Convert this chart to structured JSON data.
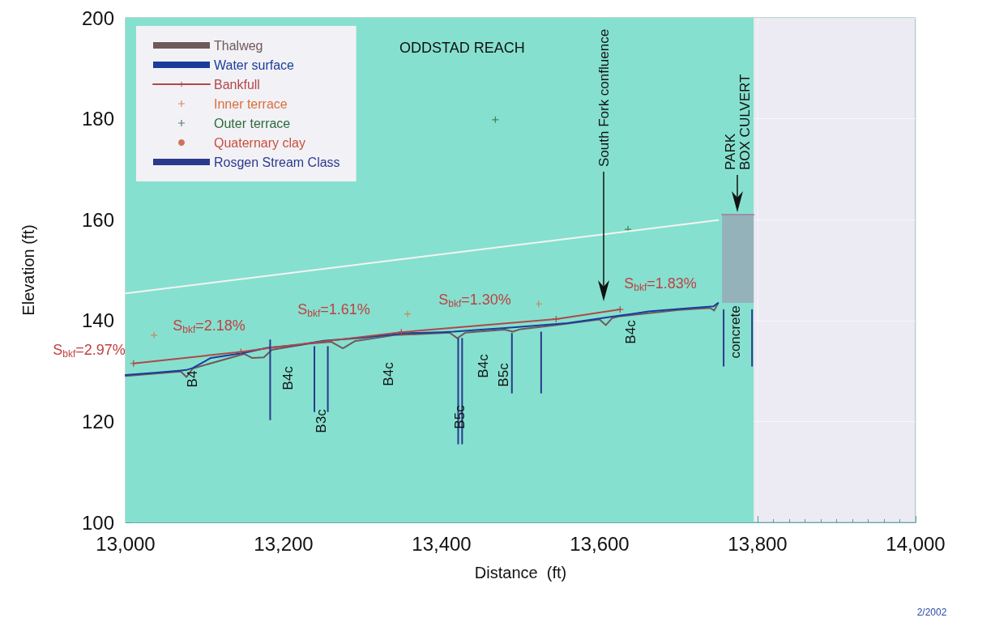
{
  "chart_data": {
    "type": "line",
    "title": "ODDSTAD REACH",
    "xlabel": "Distance  (ft)",
    "ylabel": "Elevation (ft)",
    "xlim": [
      13000,
      14000
    ],
    "xticks": [
      {
        "value": 13000,
        "label": "13,000"
      },
      {
        "value": 13200,
        "label": "13,200"
      },
      {
        "value": 13400,
        "label": "13,400"
      },
      {
        "value": 13600,
        "label": "13,600"
      },
      {
        "value": 13800,
        "label": "13,800"
      },
      {
        "value": 14000,
        "label": "14,000"
      }
    ],
    "ylim": [
      100,
      200
    ],
    "yticks": [
      100,
      120,
      140,
      160,
      180,
      200
    ],
    "grid": true,
    "legend": "top left",
    "bands": [
      {
        "axis": "x",
        "from": 13000,
        "to": 13795,
        "color": "#86e0cf"
      }
    ],
    "series": [
      {
        "name": "Thalweg",
        "color": "#6e5a5a",
        "marker": "none",
        "x": [
          13000,
          13070,
          13077,
          13085,
          13150,
          13160,
          13175,
          13185,
          13230,
          13260,
          13275,
          13290,
          13340,
          13410,
          13420,
          13430,
          13480,
          13490,
          13500,
          13540,
          13600,
          13608,
          13616,
          13624,
          13700,
          13740,
          13745,
          13750
        ],
        "values": [
          129.0,
          129.9,
          128.8,
          130.5,
          133.4,
          132.6,
          132.7,
          134.2,
          135.4,
          135.8,
          134.5,
          135.9,
          137.1,
          137.6,
          136.5,
          137.6,
          138.2,
          137.8,
          138.3,
          139.0,
          140.2,
          139.1,
          140.5,
          140.8,
          142.1,
          142.5,
          142.0,
          143.4
        ]
      },
      {
        "name": "Water surface",
        "color": "#1a3d9c",
        "marker": "none",
        "x": [
          13000,
          13040,
          13070,
          13077,
          13085,
          13108,
          13150,
          13179,
          13220,
          13251,
          13300,
          13354,
          13400,
          13415,
          13450,
          13477,
          13520,
          13559,
          13600,
          13612,
          13640,
          13662,
          13700,
          13744,
          13750
        ],
        "values": [
          129.2,
          129.7,
          130.1,
          130.2,
          130.6,
          132.6,
          133.6,
          134.6,
          135.2,
          136.0,
          136.6,
          137.5,
          137.7,
          137.8,
          138.2,
          138.5,
          139.0,
          139.5,
          140.4,
          140.7,
          141.3,
          141.8,
          142.3,
          142.8,
          143.5
        ]
      },
      {
        "name": "Bankfull",
        "color": "#b04848",
        "marker": "cross",
        "x": [
          13010,
          13146,
          13183,
          13349,
          13545,
          13626
        ],
        "values": [
          131.5,
          133.8,
          134.6,
          137.7,
          140.3,
          142.2
        ]
      },
      {
        "name": "Inner terrace",
        "type": "scatter",
        "color": "#d9703a",
        "marker": "cross",
        "x": [
          13036,
          13357,
          13523
        ],
        "values": [
          137.1,
          141.3,
          143.3
        ]
      },
      {
        "name": "Outer terrace",
        "type": "scatter",
        "color": "#2a6a3a",
        "marker": "cross",
        "x": [
          13468,
          13636
        ],
        "values": [
          179.8,
          158.1
        ]
      },
      {
        "name": "Quaternary clay",
        "type": "scatter",
        "color": "#c8503a",
        "marker": "circle"
      },
      {
        "name": "Rosgen Stream Class",
        "color": "#2a3a8c",
        "marker": "none",
        "x": [
          13183,
          13183
        ],
        "values": [
          136.1,
          120.4
        ]
      },
      {
        "color": "#2a3a8c",
        "marker": "none",
        "x": [
          13239,
          13239
        ],
        "values": [
          134.8,
          122.0
        ]
      },
      {
        "color": "#2a3a8c",
        "marker": "none",
        "x": [
          13256,
          13256
        ],
        "values": [
          134.8,
          122.0
        ]
      },
      {
        "color": "#2a3a8c",
        "marker": "none",
        "x": [
          13421,
          13421
        ],
        "values": [
          136.4,
          115.6
        ]
      },
      {
        "color": "#2a3a8c",
        "marker": "none",
        "x": [
          13426,
          13426
        ],
        "values": [
          136.4,
          115.6
        ]
      },
      {
        "color": "#2a3a8c",
        "marker": "none",
        "x": [
          13489,
          13489
        ],
        "values": [
          137.4,
          125.7
        ]
      },
      {
        "color": "#2a3a8c",
        "marker": "none",
        "x": [
          13526,
          13526
        ],
        "values": [
          137.7,
          125.7
        ]
      },
      {
        "color": "#2a3a8c",
        "marker": "none",
        "x": [
          13757,
          13757
        ],
        "values": [
          142.1,
          131.0
        ]
      },
      {
        "color": "#2a3a8c",
        "marker": "none",
        "x": [
          13793,
          13793
        ],
        "values": [
          142.1,
          131.0
        ]
      },
      {
        "color": "#f4f4f4",
        "marker": "none",
        "x": [
          13000,
          13750
        ],
        "values": [
          145.4,
          159.9
        ]
      },
      {
        "color": "#a08ca8",
        "marker": "none",
        "x": [
          13755,
          13795
        ],
        "values": [
          161,
          161
        ],
        "lower": [
          143.5,
          143.5
        ],
        "upper": [
          161,
          161
        ]
      }
    ],
    "annotations": [
      "S$_{bkf}$=2.97%",
      "S$_{bkf}$=2.18%",
      "S$_{bkf}$=1.61%",
      "S$_{bkf}$=1.30%",
      "S$_{bkf}$=1.83%",
      "B4",
      "B4c",
      "B3c",
      "B4c",
      "B5c",
      "B4c",
      "B5c",
      "B4c",
      "concrete",
      "South Fork confluence",
      "PARK\nBOX CULVERT",
      "2/2002"
    ]
  }
}
